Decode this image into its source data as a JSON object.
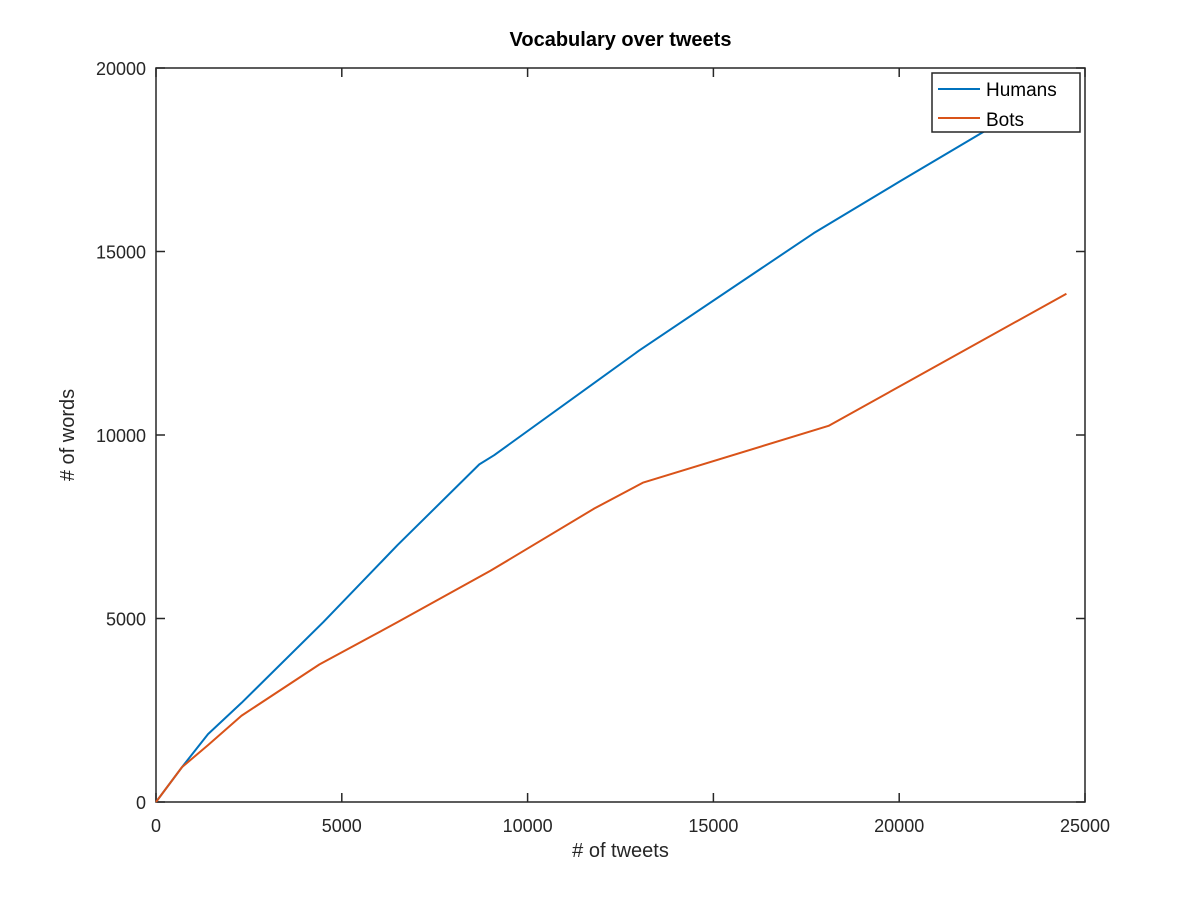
{
  "chart_data": {
    "type": "line",
    "title": "Vocabulary over tweets",
    "xlabel": "# of tweets",
    "ylabel": "# of words",
    "xlim": [
      0,
      25000
    ],
    "ylim": [
      0,
      20000
    ],
    "xticks": [
      0,
      5000,
      10000,
      15000,
      20000,
      25000
    ],
    "yticks": [
      0,
      5000,
      10000,
      15000,
      20000
    ],
    "xtick_labels": [
      "0",
      "5000",
      "10000",
      "15000",
      "20000",
      "25000"
    ],
    "ytick_labels": [
      "0",
      "5000",
      "10000",
      "15000",
      "20000"
    ],
    "grid": false,
    "legend_position": "top-right",
    "series": [
      {
        "name": "Humans",
        "color": "#0072BD",
        "x": [
          0,
          700,
          1400,
          2300,
          4500,
          6500,
          8700,
          9100,
          13000,
          17700,
          20000,
          22500
        ],
        "y": [
          0,
          950,
          1850,
          2700,
          4900,
          7000,
          9200,
          9450,
          12300,
          15500,
          16900,
          18400
        ]
      },
      {
        "name": "Bots",
        "color": "#D95319",
        "x": [
          0,
          700,
          1400,
          2300,
          4400,
          6500,
          9000,
          11800,
          13100,
          18100,
          24500
        ],
        "y": [
          0,
          950,
          1550,
          2350,
          3750,
          4900,
          6300,
          8000,
          8700,
          10250,
          13850
        ]
      }
    ]
  }
}
